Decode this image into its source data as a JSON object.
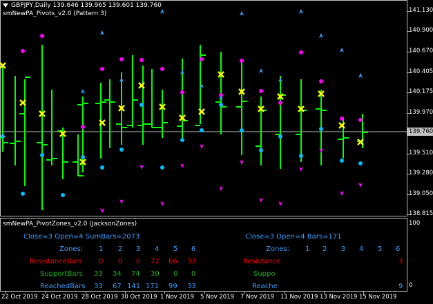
{
  "main_chart": {
    "title": "GBPJPY,Daily  139.646 139.965 139.601 139.760",
    "indicator_label": "smNewPA_Pivots_v2.0 (Pattern 3)",
    "current_price": "139.760",
    "price_axis": [
      "141.130",
      "140.900",
      "140.670",
      "140.405",
      "140.175",
      "139.970",
      "139.760",
      "139.510",
      "139.280",
      "139.050",
      "138.815"
    ]
  },
  "sub_window": {
    "title": "smNewPA_PivotZones_v2.0 (JacksonZones)",
    "left_panel": {
      "header": "Close=3  Open=4  SumBars=2073",
      "zones_label": "Zones:",
      "zones": [
        "1",
        "2",
        "3",
        "4",
        "5",
        "6"
      ],
      "rows": [
        {
          "label": "ResistanceBars",
          "color": "#ff0000",
          "values": [
            "0",
            "0",
            "0",
            "72",
            "66",
            "33"
          ]
        },
        {
          "label": "SupportBars",
          "color": "#20b020",
          "values": [
            "33",
            "34",
            "74",
            "30",
            "0",
            "0"
          ]
        },
        {
          "label": "ReachedBars",
          "color": "#3a9fff",
          "values": [
            "33",
            "67",
            "141",
            "171",
            "99",
            "33"
          ]
        }
      ]
    },
    "right_panel": {
      "header": "Close=3  Open=4  Bars=171",
      "zones_label": "Zones:",
      "zones": [
        "1",
        "2",
        "3",
        "4",
        "5",
        "6"
      ],
      "resistance_label": "Resistance",
      "resistance_value": "3",
      "support_label": "Suppo",
      "reached_label": "Reache",
      "reached_value": "9"
    },
    "axis_top": "100",
    "axis_bottom": "0"
  },
  "time_axis": [
    "22 Oct 2019",
    "24 Oct 2019",
    "28 Oct 2019",
    "30 Oct 2019",
    "1 Nov 2019",
    "5 Nov 2019",
    "7 Nov 2019",
    "11 Nov 2019",
    "13 Nov 2019",
    "15 Nov 2019"
  ],
  "colors": {
    "background": "#000000",
    "bars": "#00ff00",
    "pivot_cross": "#ffff00",
    "magenta_dot": "#ff00ff",
    "cyan_dot": "#00bfff",
    "arrow_up": "#3aa0ff",
    "arrow_down": "#ff00ff",
    "current_price_line": "#c0c0c0"
  }
}
